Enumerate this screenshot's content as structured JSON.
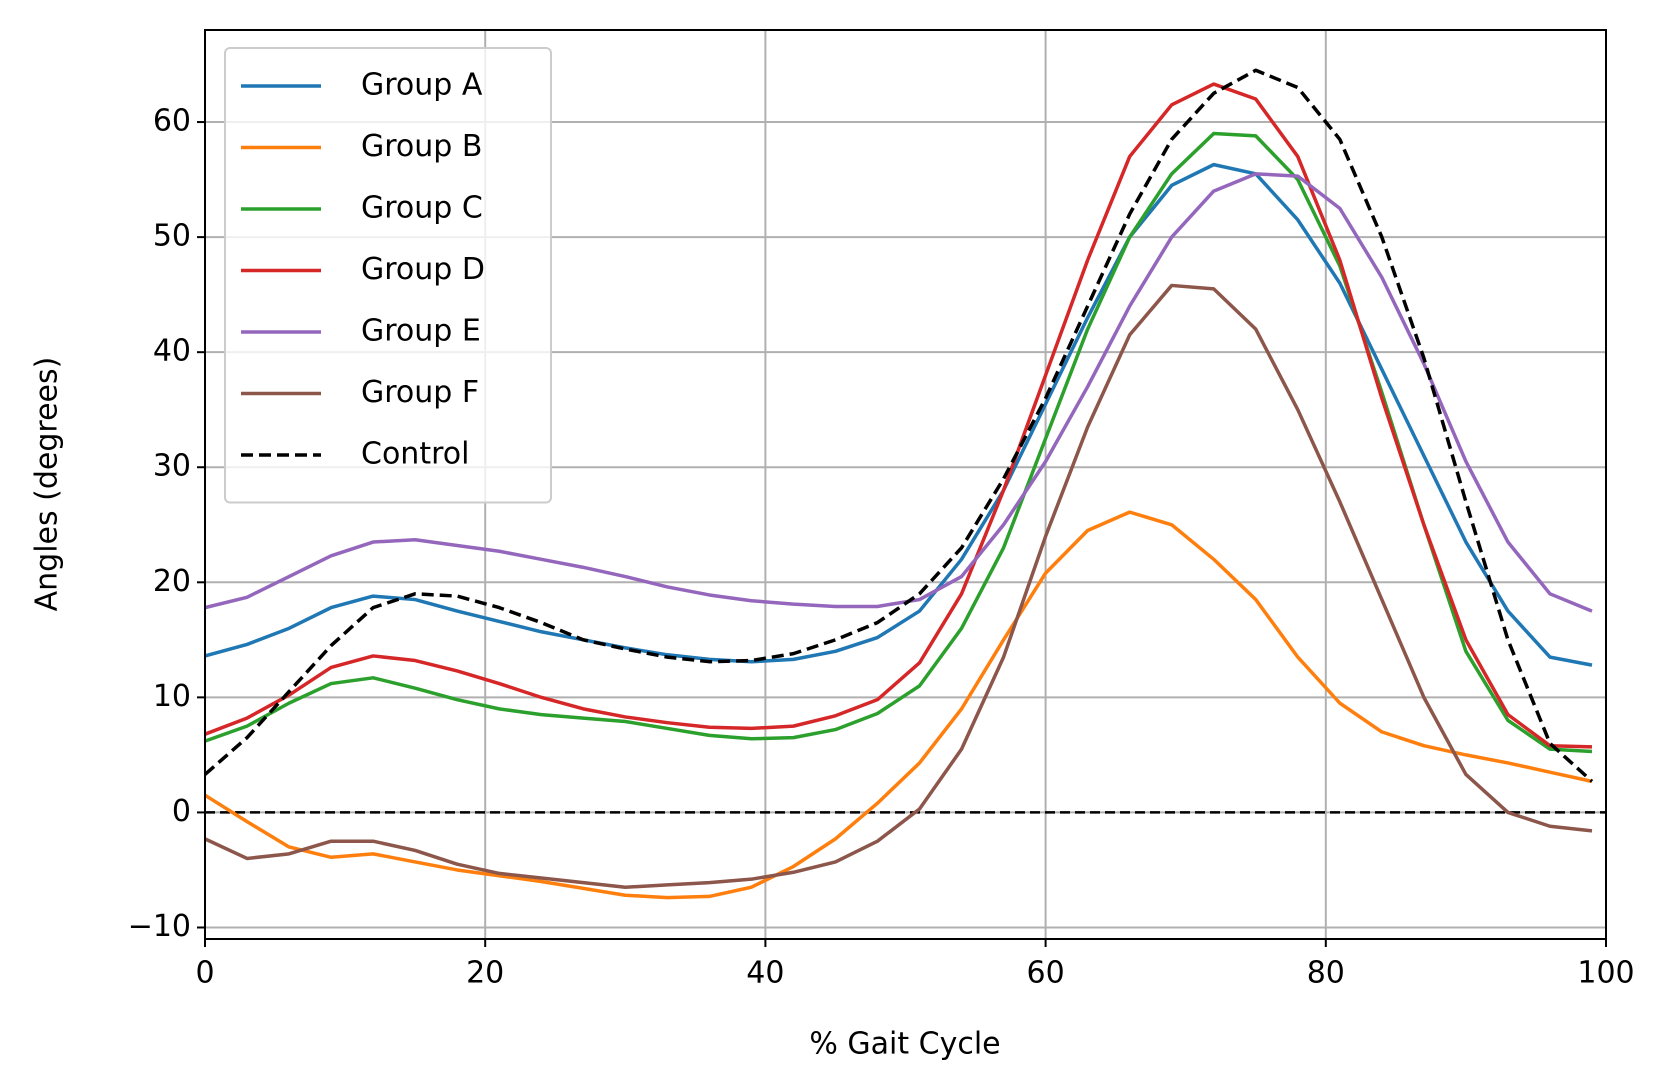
{
  "chart_data": {
    "type": "line",
    "xlabel": "% Gait Cycle",
    "ylabel": "Angles (degrees)",
    "x": [
      0,
      3,
      6,
      9,
      12,
      15,
      18,
      21,
      24,
      27,
      30,
      33,
      36,
      39,
      42,
      45,
      48,
      51,
      54,
      57,
      60,
      63,
      66,
      69,
      72,
      75,
      78,
      81,
      84,
      87,
      90,
      93,
      96,
      99
    ],
    "series": [
      {
        "name": "Group A",
        "color": "#1f77b4",
        "linestyle": "solid",
        "values": [
          13.6,
          14.6,
          16.0,
          17.8,
          18.8,
          18.5,
          17.5,
          16.6,
          15.7,
          15.0,
          14.3,
          13.7,
          13.3,
          13.1,
          13.3,
          14.0,
          15.2,
          17.5,
          22,
          28,
          35.5,
          43,
          50,
          54.5,
          56.3,
          55.5,
          51.5,
          46,
          38.5,
          31,
          23.5,
          17.5,
          13.5,
          12.8
        ]
      },
      {
        "name": "Group B",
        "color": "#ff7f0e",
        "linestyle": "solid",
        "values": [
          1.5,
          -0.8,
          -3,
          -3.9,
          -3.6,
          -4.3,
          -5,
          -5.5,
          -6,
          -6.6,
          -7.2,
          -7.4,
          -7.3,
          -6.5,
          -4.7,
          -2.3,
          0.8,
          4.3,
          9,
          15,
          20.8,
          24.5,
          26.1,
          25,
          22,
          18.5,
          13.5,
          9.5,
          7,
          5.8,
          5,
          4.3,
          3.5,
          2.7
        ]
      },
      {
        "name": "Group C",
        "color": "#2ca02c",
        "linestyle": "solid",
        "values": [
          6.2,
          7.5,
          9.5,
          11.2,
          11.7,
          10.8,
          9.8,
          9,
          8.5,
          8.2,
          7.9,
          7.3,
          6.7,
          6.4,
          6.5,
          7.2,
          8.6,
          11,
          16,
          23,
          32.5,
          42,
          50,
          55.5,
          59,
          58.8,
          55,
          47.5,
          36.5,
          25,
          14,
          8,
          5.5,
          5.3
        ]
      },
      {
        "name": "Group D",
        "color": "#d62728",
        "linestyle": "solid",
        "values": [
          6.8,
          8.2,
          10.2,
          12.6,
          13.6,
          13.2,
          12.3,
          11.2,
          10,
          9,
          8.3,
          7.8,
          7.4,
          7.3,
          7.5,
          8.4,
          9.8,
          13,
          19,
          28,
          38,
          48,
          57,
          61.5,
          63.3,
          62,
          57,
          48,
          36,
          25,
          15,
          8.5,
          5.8,
          5.7
        ]
      },
      {
        "name": "Group E",
        "color": "#9467bd",
        "linestyle": "solid",
        "values": [
          17.8,
          18.7,
          20.5,
          22.3,
          23.5,
          23.7,
          23.2,
          22.7,
          22,
          21.3,
          20.5,
          19.6,
          18.9,
          18.4,
          18.1,
          17.9,
          17.9,
          18.5,
          20.5,
          25,
          30.5,
          37,
          44,
          50,
          54,
          55.5,
          55.3,
          52.5,
          46.5,
          39,
          30.5,
          23.5,
          19,
          17.5
        ]
      },
      {
        "name": "Group F",
        "color": "#8c564b",
        "linestyle": "solid",
        "values": [
          -2.3,
          -4,
          -3.6,
          -2.5,
          -2.5,
          -3.3,
          -4.5,
          -5.3,
          -5.7,
          -6.1,
          -6.5,
          -6.3,
          -6.1,
          -5.8,
          -5.2,
          -4.3,
          -2.5,
          0.3,
          5.5,
          13.5,
          24,
          33.5,
          41.5,
          45.8,
          45.5,
          42,
          35,
          27,
          18.5,
          10,
          3.3,
          0,
          -1.2,
          -1.6
        ]
      },
      {
        "name": "Control",
        "color": "#000000",
        "linestyle": "dashed",
        "values": [
          3.3,
          6.5,
          10.5,
          14.5,
          17.8,
          19,
          18.8,
          17.8,
          16.5,
          15,
          14.2,
          13.5,
          13.1,
          13.2,
          13.8,
          15,
          16.5,
          19,
          23,
          29,
          36,
          44,
          52,
          58.5,
          62.5,
          64.5,
          63,
          58.5,
          50,
          39.5,
          27,
          15,
          6,
          2.7
        ]
      }
    ],
    "hline": 0,
    "xlim": [
      0,
      100
    ],
    "xticks": [
      0,
      20,
      40,
      60,
      80,
      100
    ],
    "ylim": [
      -11,
      68
    ],
    "yticks": [
      {
        "value": -10,
        "label": "−10"
      },
      0,
      10,
      20,
      30,
      40,
      50,
      60
    ],
    "grid": true,
    "legend": "upper left"
  }
}
